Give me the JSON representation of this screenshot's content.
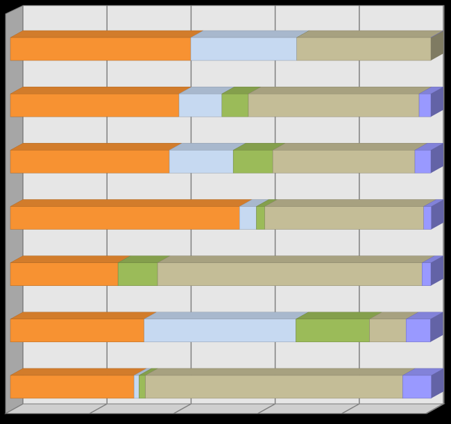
{
  "chart_data": {
    "type": "bar",
    "orientation": "horizontal",
    "stacked": true,
    "categories": [
      null,
      null,
      null,
      null,
      null,
      null,
      null
    ],
    "series": [
      {
        "color": "#f79232",
        "values": [
          42.9,
          40.1,
          37.8,
          54.5,
          25.6,
          31.8,
          29.4
        ]
      },
      {
        "color": "#c6d9f1",
        "values": [
          25.2,
          10.2,
          15.2,
          4.0,
          0,
          36.1,
          1.2
        ]
      },
      {
        "color": "#9bbb59",
        "values": [
          0,
          6.3,
          9.4,
          2.0,
          9.4,
          17.5,
          1.5
        ]
      },
      {
        "color": "#c4bd97",
        "values": [
          31.9,
          40.6,
          33.8,
          37.8,
          62.9,
          8.7,
          61.2
        ]
      },
      {
        "color": "#9999ff",
        "values": [
          0,
          2.8,
          3.8,
          1.8,
          2.1,
          5.8,
          6.8
        ]
      }
    ],
    "xlim": [
      0,
      100
    ],
    "xticks": [
      0,
      20,
      40,
      60,
      80,
      100
    ],
    "grid": true
  }
}
